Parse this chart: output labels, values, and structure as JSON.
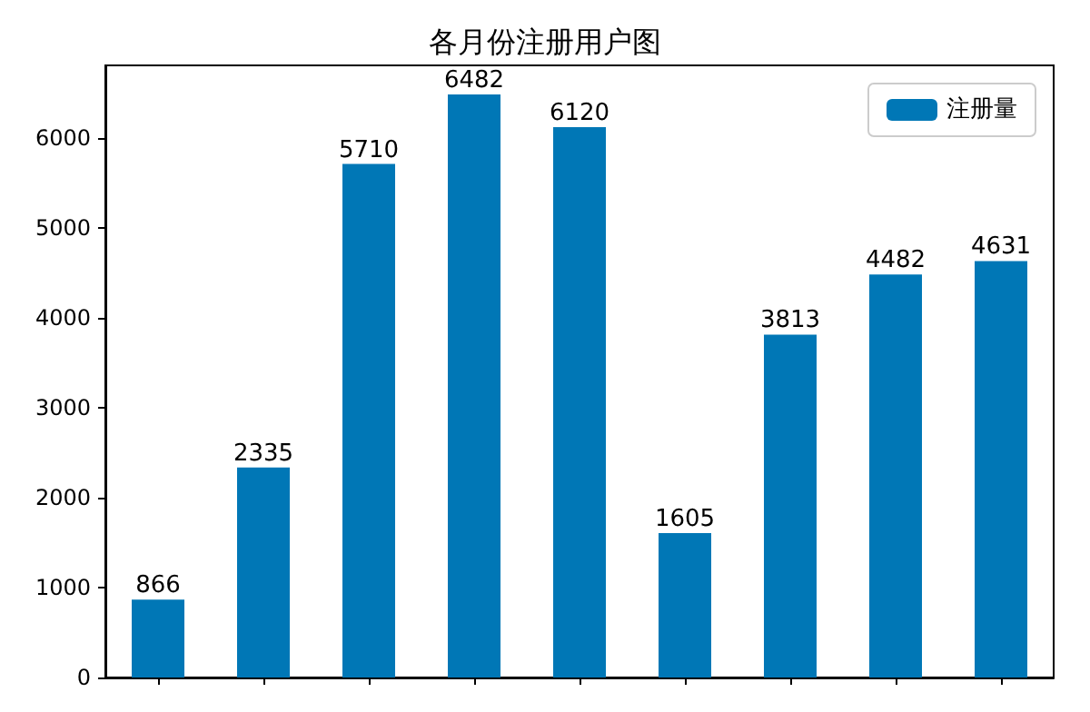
{
  "chart_data": {
    "type": "bar",
    "title": "各月份注册用户图",
    "categories": [
      null,
      null,
      null,
      null,
      null,
      null,
      null,
      null,
      null
    ],
    "series": [
      {
        "name": "注册量",
        "color": "#0077b6",
        "values": [
          866,
          2335,
          5710,
          6482,
          6120,
          1605,
          3813,
          4482,
          4631
        ]
      }
    ],
    "ylim": [
      0,
      6806
    ],
    "yticks": [
      0,
      1000,
      2000,
      3000,
      4000,
      5000,
      6000
    ],
    "data_labels": true,
    "legend": "top right",
    "grid": false,
    "tick_labels": "y"
  }
}
